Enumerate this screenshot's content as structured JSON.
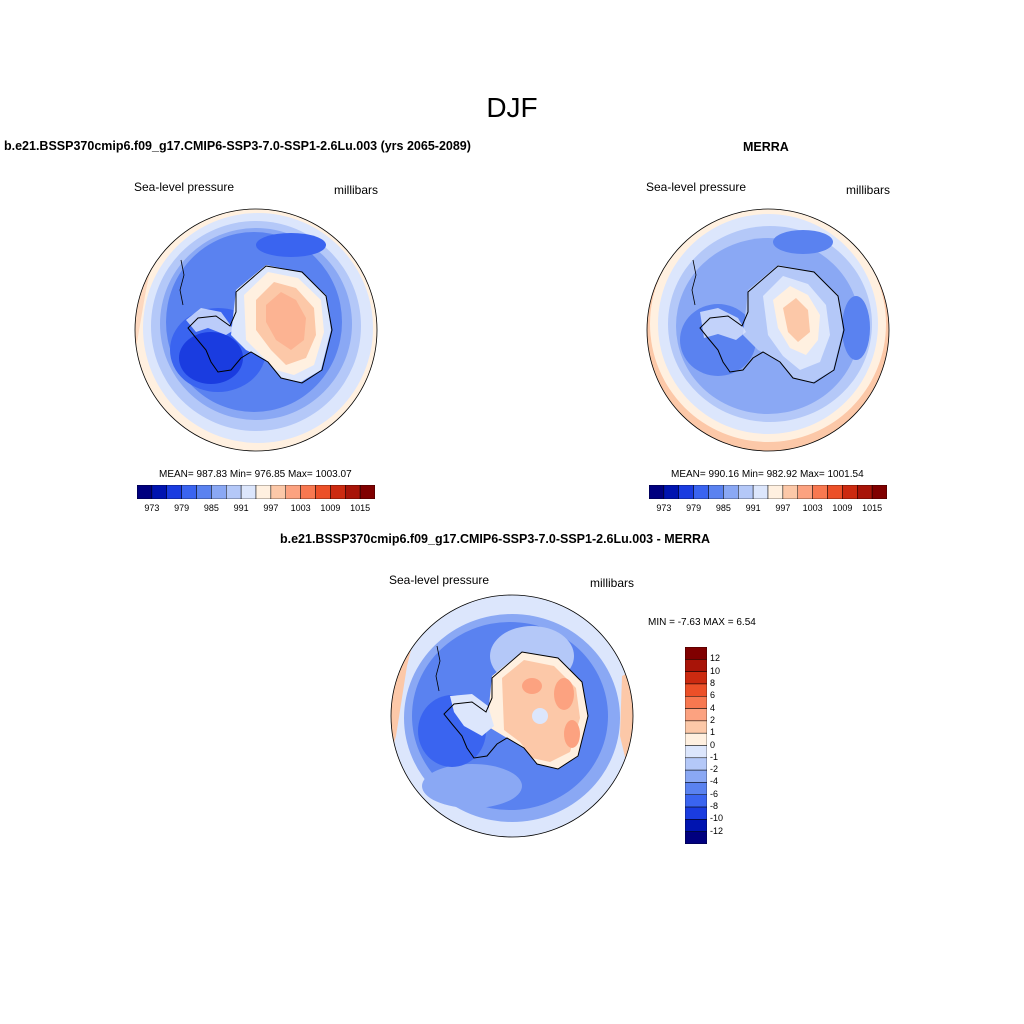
{
  "title": "DJF",
  "palette": [
    "#00007f",
    "#0014b0",
    "#1a3ce0",
    "#3a64f0",
    "#5a82f0",
    "#8aa8f4",
    "#b4c8f8",
    "#dce6fc",
    "#fff0e0",
    "#fcc8a8",
    "#fca280",
    "#f87850",
    "#ec5028",
    "#cc2a10",
    "#a81408",
    "#800000"
  ],
  "diff_palette": [
    "#00007f",
    "#0014b0",
    "#1a3ce0",
    "#3a64f0",
    "#5a82f0",
    "#8aa8f4",
    "#b4c8f8",
    "#dce6fc",
    "#fff0e0",
    "#fcc8a8",
    "#fca280",
    "#f87850",
    "#ec5028",
    "#cc2a10",
    "#a81408",
    "#800000"
  ],
  "panels": {
    "model": {
      "title": "b.e21.BSSP370cmip6.f09_g17.CMIP6-SSP3-7.0-SSP1-2.6Lu.003 (yrs 2065-2089)",
      "left_label": "Sea-level pressure",
      "right_label": "millibars",
      "stats": "MEAN= 987.83  Min= 976.85  Max= 1003.07",
      "colorbar_labels": [
        "973",
        "979",
        "985",
        "991",
        "997",
        "1003",
        "1009",
        "1015"
      ]
    },
    "obs": {
      "title": "MERRA",
      "left_label": "Sea-level pressure",
      "right_label": "millibars",
      "stats": "MEAN= 990.16  Min= 982.92  Max= 1001.54",
      "colorbar_labels": [
        "973",
        "979",
        "985",
        "991",
        "997",
        "1003",
        "1009",
        "1015"
      ]
    },
    "diff": {
      "title": "b.e21.BSSP370cmip6.f09_g17.CMIP6-SSP3-7.0-SSP1-2.6Lu.003 - MERRA",
      "left_label": "Sea-level pressure",
      "right_label": "millibars",
      "stats": "MIN =  -7.63 MAX =   6.54",
      "colorbar_labels": [
        "12",
        "10",
        "8",
        "6",
        "4",
        "2",
        "1",
        "0",
        "-1",
        "-2",
        "-4",
        "-6",
        "-8",
        "-10",
        "-12"
      ]
    }
  }
}
